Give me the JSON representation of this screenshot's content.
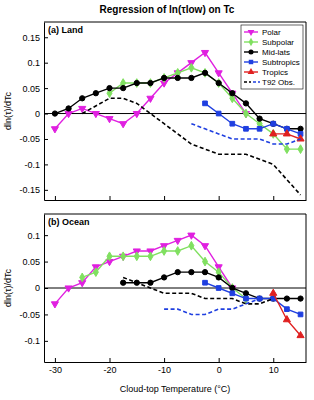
{
  "title": "Regression of ln(τlow) on Tc",
  "chart_data": [
    {
      "type": "line",
      "title": "(a) Land",
      "y_label": "dln(τ)/dTc",
      "xlim": [
        -32,
        16
      ],
      "xticks": [
        -30,
        -20,
        -10,
        0,
        10
      ],
      "ylim": [
        -0.17,
        0.18
      ],
      "yticks": [
        -0.15,
        -0.1,
        -0.05,
        0,
        0.05,
        0.1,
        0.15
      ],
      "tick_labels": "y",
      "legend": "upper right",
      "grid": false,
      "series": [
        {
          "name": "Polar",
          "color": "#e020e0",
          "marker": "triangle-down",
          "line_style": "solid",
          "x": [
            -30,
            -27.5,
            -25,
            -22.5,
            -20,
            -17.5,
            -15,
            -12.5,
            -10,
            -7.5,
            -5,
            -2.5,
            0,
            2.5,
            5
          ],
          "values": [
            -0.03,
            0.0,
            0.01,
            0.0,
            -0.01,
            -0.02,
            0.0,
            0.03,
            0.06,
            0.08,
            0.1,
            0.12,
            0.08,
            0.04,
            0.0
          ]
        },
        {
          "name": "Subpolar",
          "color": "#80e060",
          "marker": "diamond",
          "line_style": "solid",
          "x": [
            -20,
            -17.5,
            -15,
            -12.5,
            -10,
            -7.5,
            -5,
            -2.5,
            0,
            2.5,
            5,
            7.5,
            10,
            12.5,
            15
          ],
          "values": [
            0.04,
            0.06,
            0.06,
            0.06,
            0.07,
            0.08,
            0.09,
            0.08,
            0.06,
            0.03,
            0.0,
            -0.02,
            -0.04,
            -0.07,
            -0.07
          ]
        },
        {
          "name": "Mid-lats",
          "color": "#000000",
          "marker": "circle",
          "line_style": "solid",
          "x": [
            -30,
            -27.5,
            -25,
            -22.5,
            -20,
            -17.5,
            -15,
            -12.5,
            -10,
            -7.5,
            -5,
            -2.5,
            0,
            2.5,
            5,
            7.5,
            10,
            12.5,
            15
          ],
          "values": [
            0.0,
            0.01,
            0.03,
            0.04,
            0.05,
            0.05,
            0.06,
            0.06,
            0.07,
            0.07,
            0.07,
            0.08,
            0.06,
            0.04,
            0.02,
            -0.01,
            -0.02,
            -0.03,
            -0.03
          ]
        },
        {
          "name": "Subtropics",
          "color": "#1f3fe0",
          "marker": "square",
          "line_style": "solid",
          "x": [
            -2.5,
            0,
            2.5,
            5,
            7.5,
            10,
            12.5,
            15
          ],
          "values": [
            0.02,
            0.0,
            -0.02,
            -0.03,
            -0.03,
            -0.02,
            -0.03,
            -0.04
          ]
        },
        {
          "name": "Tropics",
          "color": "#e02020",
          "marker": "triangle-up",
          "line_style": "solid",
          "x": [
            10,
            12.5,
            15
          ],
          "values": [
            -0.04,
            -0.04,
            -0.05
          ]
        },
        {
          "name": "T92 Obs.",
          "color": "#000000",
          "marker": "none",
          "line_style": "dashed",
          "x": [
            -25,
            -20,
            -17.5,
            -15,
            -12.5,
            -10,
            -7.5,
            -5,
            -2.5,
            0,
            2.5,
            5,
            7.5,
            10,
            12.5,
            15
          ],
          "values": [
            0.0,
            0.03,
            0.03,
            0.02,
            0.0,
            -0.02,
            -0.04,
            -0.06,
            -0.07,
            -0.08,
            -0.08,
            -0.08,
            -0.09,
            -0.1,
            -0.13,
            -0.16
          ]
        },
        {
          "name": "T92 Obs.",
          "color": "#1f3fe0",
          "marker": "none",
          "line_style": "dashed",
          "x": [
            -5,
            -2.5,
            0,
            2.5,
            5,
            7.5,
            10,
            12.5,
            15
          ],
          "values": [
            -0.02,
            -0.03,
            -0.04,
            -0.05,
            -0.05,
            -0.05,
            -0.06,
            -0.06,
            -0.05
          ]
        }
      ]
    },
    {
      "type": "line",
      "title": "(b) Ocean",
      "y_label": "dln(τ)/dTc",
      "x_label": "Cloud-top Temperature (°C)",
      "xlim": [
        -32,
        16
      ],
      "xticks": [
        -30,
        -20,
        -10,
        0,
        10
      ],
      "ylim": [
        -0.14,
        0.14
      ],
      "yticks": [
        -0.1,
        -0.05,
        0,
        0.05,
        0.1
      ],
      "grid": false,
      "series": [
        {
          "name": "Polar",
          "color": "#e020e0",
          "marker": "triangle-down",
          "line_style": "solid",
          "x": [
            -30,
            -27.5,
            -25,
            -22.5,
            -20,
            -17.5,
            -15,
            -12.5,
            -10,
            -7.5,
            -5,
            -2.5,
            0,
            2.5
          ],
          "values": [
            -0.03,
            0.0,
            0.01,
            0.04,
            0.05,
            0.06,
            0.07,
            0.07,
            0.08,
            0.09,
            0.1,
            0.08,
            0.04,
            0.0
          ]
        },
        {
          "name": "Subpolar",
          "color": "#80e060",
          "marker": "diamond",
          "line_style": "solid",
          "x": [
            -25,
            -22.5,
            -20,
            -17.5,
            -15,
            -12.5,
            -10,
            -7.5,
            -5,
            -2.5,
            0,
            2.5,
            5
          ],
          "values": [
            0.02,
            0.03,
            0.06,
            0.06,
            0.06,
            0.06,
            0.07,
            0.07,
            0.08,
            0.05,
            0.03,
            0.0,
            -0.02
          ]
        },
        {
          "name": "Mid-lats",
          "color": "#000000",
          "marker": "circle",
          "line_style": "solid",
          "x": [
            -17.5,
            -15,
            -12.5,
            -10,
            -7.5,
            -5,
            -2.5,
            0,
            2.5,
            5,
            7.5,
            10,
            12.5,
            15
          ],
          "values": [
            0.01,
            0.01,
            0.01,
            0.02,
            0.03,
            0.03,
            0.03,
            0.02,
            0.0,
            -0.01,
            -0.02,
            -0.02,
            -0.02,
            -0.02
          ]
        },
        {
          "name": "Subtropics",
          "color": "#1f3fe0",
          "marker": "square",
          "line_style": "solid",
          "x": [
            -2.5,
            0,
            2.5,
            5,
            7.5,
            10,
            12.5,
            15
          ],
          "values": [
            0.01,
            0.0,
            -0.01,
            -0.02,
            -0.02,
            -0.02,
            -0.04,
            -0.05
          ]
        },
        {
          "name": "Tropics",
          "color": "#e02020",
          "marker": "triangle-up",
          "line_style": "solid",
          "x": [
            10,
            12.5,
            15
          ],
          "values": [
            -0.01,
            -0.06,
            -0.09
          ]
        },
        {
          "name": "T92 Obs.",
          "color": "#000000",
          "marker": "none",
          "line_style": "dashed",
          "x": [
            -17.5,
            -15,
            -12.5,
            -10,
            -7.5,
            -5,
            -2.5,
            0,
            2.5,
            5,
            7.5,
            10
          ],
          "values": [
            0.02,
            0.01,
            0.0,
            -0.01,
            -0.01,
            -0.01,
            -0.02,
            -0.02,
            -0.02,
            -0.03,
            -0.03,
            -0.02
          ]
        },
        {
          "name": "T92 Obs.",
          "color": "#1f3fe0",
          "marker": "none",
          "line_style": "dashed",
          "x": [
            -10,
            -7.5,
            -5,
            -2.5,
            0,
            2.5,
            5,
            7.5
          ],
          "values": [
            -0.04,
            -0.04,
            -0.05,
            -0.05,
            -0.04,
            -0.04,
            -0.03,
            -0.02
          ]
        }
      ]
    }
  ]
}
